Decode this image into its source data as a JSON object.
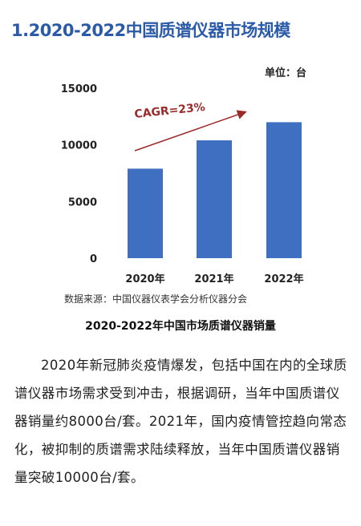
{
  "heading": "1.2020-2022中国质谱仪器市场规模",
  "unit_label": "单位：台",
  "source": "数据来源：中国仪器仪表学会分析仪器分会",
  "caption": "2020-2022年中国市场质谱仪器销量",
  "paragraph": "2020年新冠肺炎疫情爆发，包括中国在内的全球质谱仪器市场需求受到冲击，根据调研，当年中国质谱仪器销量约8000台/套。2021年，国内疫情管控趋向常态化，被抑制的质谱需求陆续释放，当年中国质谱仪器销量突破10000台/套。",
  "colors": {
    "heading": "#2a5aa8",
    "bar": "#3f6fc0",
    "arrow": "#9b2b2b"
  },
  "chart_data": {
    "type": "bar",
    "categories": [
      "2020年",
      "2021年",
      "2022年"
    ],
    "values": [
      7900,
      10400,
      12000
    ],
    "ylim": [
      0,
      15000
    ],
    "yticks": [
      0,
      5000,
      10000,
      15000
    ],
    "annotation": "CAGR=23%",
    "grid": false,
    "legend": "none"
  }
}
